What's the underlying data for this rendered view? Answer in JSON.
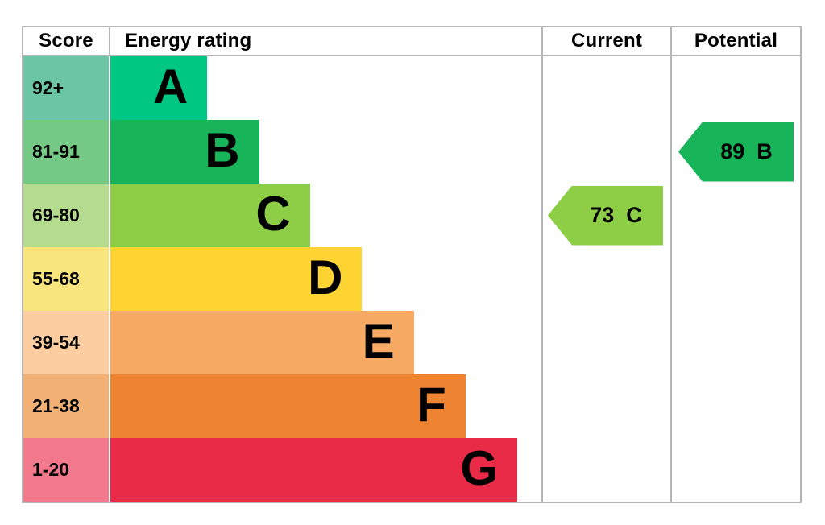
{
  "chart_data": {
    "type": "bar",
    "description": "EPC energy efficiency rating chart",
    "columns": {
      "score": "Score",
      "rating": "Energy rating",
      "current": "Current",
      "potential": "Potential"
    },
    "bands": [
      {
        "letter": "A",
        "score": "92+",
        "bar_color": "#00c781",
        "score_color": "#6cc5a4",
        "width_pct": 22.5
      },
      {
        "letter": "B",
        "score": "81-91",
        "bar_color": "#17b45a",
        "score_color": "#74c985",
        "width_pct": 34.5
      },
      {
        "letter": "C",
        "score": "69-80",
        "bar_color": "#8dce46",
        "score_color": "#b4db8e",
        "width_pct": 46.3
      },
      {
        "letter": "D",
        "score": "55-68",
        "bar_color": "#fdd431",
        "score_color": "#f9e57d",
        "width_pct": 58.4
      },
      {
        "letter": "E",
        "score": "39-54",
        "bar_color": "#f7aa64",
        "score_color": "#fbcda0",
        "width_pct": 70.4
      },
      {
        "letter": "F",
        "score": "21-38",
        "bar_color": "#ee8432",
        "score_color": "#f3b075",
        "width_pct": 82.4
      },
      {
        "letter": "G",
        "score": "1-20",
        "bar_color": "#ea2b47",
        "score_color": "#f1798b",
        "width_pct": 94.4
      }
    ],
    "current": {
      "value": "73",
      "band": "C",
      "color": "#8dce46"
    },
    "potential": {
      "value": "89",
      "band": "B",
      "color": "#17b45a"
    },
    "border_color": "#b5b5b5",
    "legend_position": "none",
    "grid": false
  }
}
